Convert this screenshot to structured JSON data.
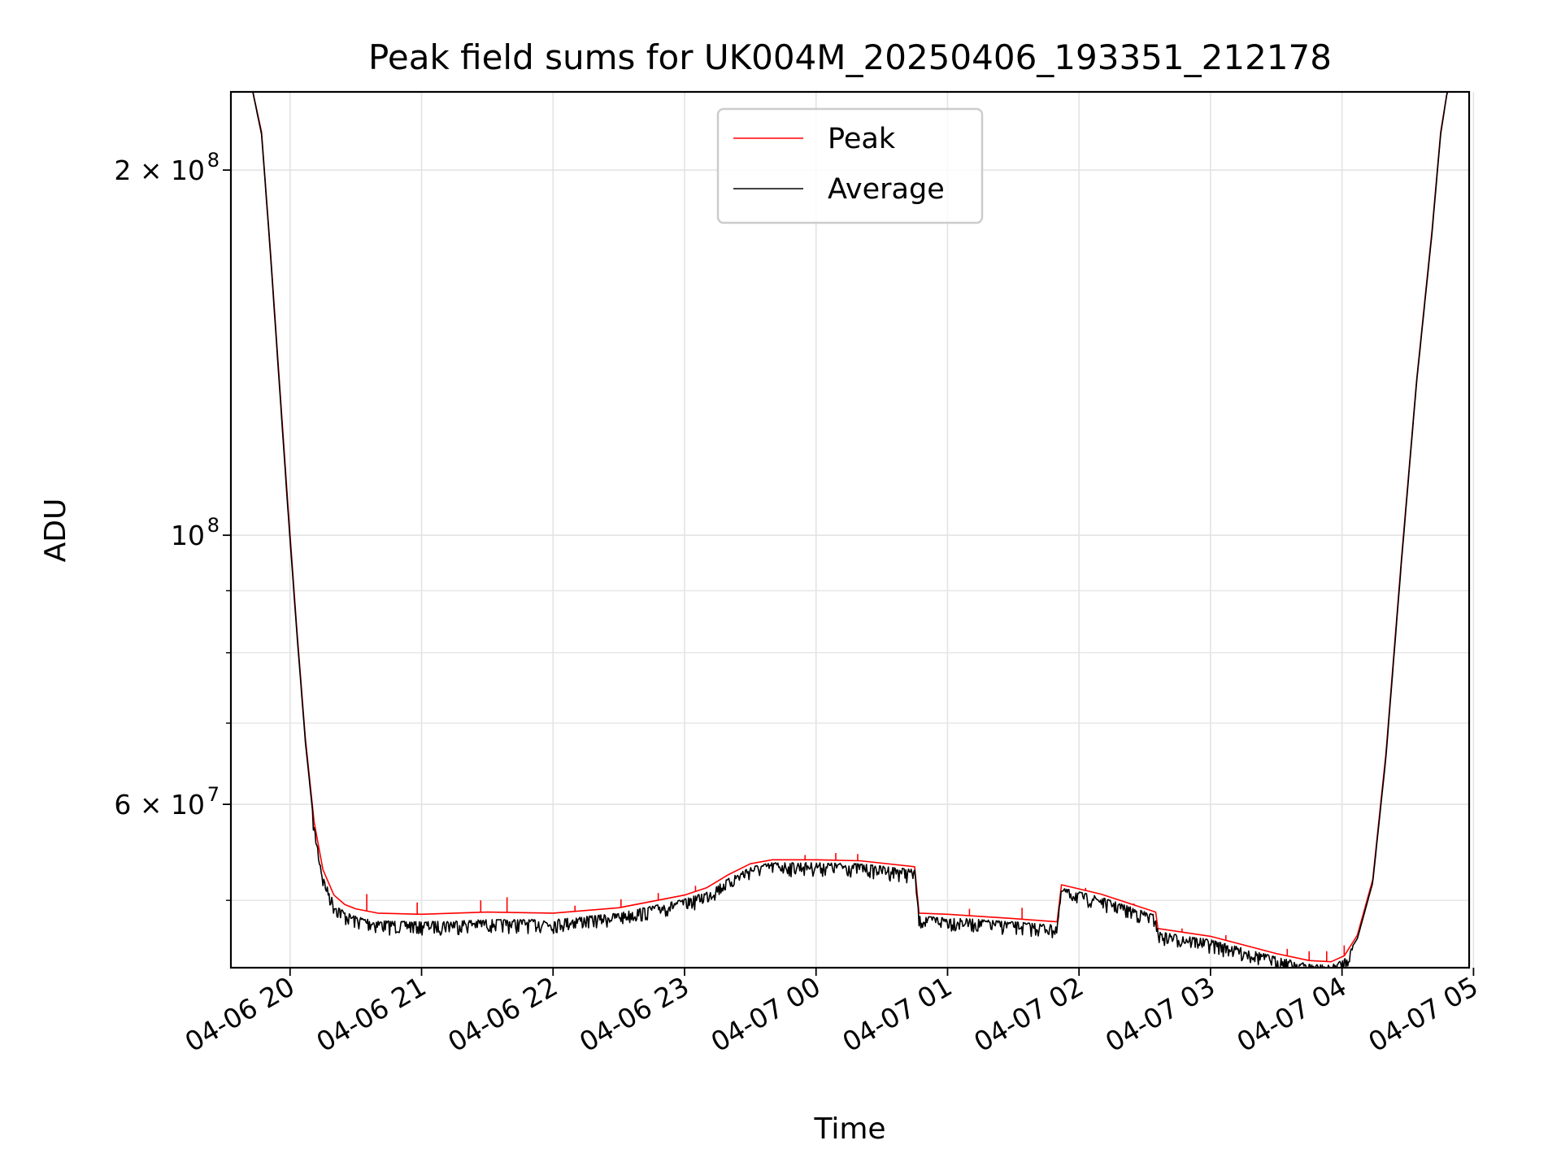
{
  "chart_data": {
    "type": "line",
    "title": "Peak field sums for UK004M_20250406_193351_212178",
    "xlabel": "Time",
    "ylabel": "ADU",
    "yscale": "log",
    "grid": true,
    "legend_position": "upper center",
    "xlim": [
      "2025-04-06 19:33",
      "2025-04-07 04:58"
    ],
    "ylim": [
      44000000,
      232000000
    ],
    "x_ticks": [
      "04-06 20",
      "04-06 21",
      "04-06 22",
      "04-06 23",
      "04-07 00",
      "04-07 01",
      "04-07 02",
      "04-07 03",
      "04-07 04",
      "04-07 05"
    ],
    "y_ticks": [
      {
        "value": 200000000,
        "base": "2 × 10",
        "exp": "8"
      },
      {
        "value": 100000000,
        "base": "10",
        "exp": "8"
      },
      {
        "value": 60000000,
        "base": "6 × 10",
        "exp": "7"
      }
    ],
    "y_minor_ticks": [
      50000000,
      70000000,
      80000000,
      90000000
    ],
    "series": [
      {
        "name": "Peak",
        "color": "#ff0000",
        "x": [
          "2025-04-06 19:33",
          "2025-04-06 19:43",
          "2025-04-06 19:47",
          "2025-04-06 19:51",
          "2025-04-06 19:55",
          "2025-04-06 19:59",
          "2025-04-06 20:03",
          "2025-04-06 20:07",
          "2025-04-06 20:11",
          "2025-04-06 20:15",
          "2025-04-06 20:20",
          "2025-04-06 20:25",
          "2025-04-06 20:30",
          "2025-04-06 20:40",
          "2025-04-06 21:00",
          "2025-04-06 21:30",
          "2025-04-06 22:00",
          "2025-04-06 22:30",
          "2025-04-06 23:00",
          "2025-04-06 23:10",
          "2025-04-06 23:20",
          "2025-04-06 23:30",
          "2025-04-06 23:40",
          "2025-04-07 00:00",
          "2025-04-07 00:20",
          "2025-04-07 00:45",
          "2025-04-07 00:47",
          "2025-04-07 01:00",
          "2025-04-07 01:30",
          "2025-04-07 01:50",
          "2025-04-07 01:52",
          "2025-04-07 02:10",
          "2025-04-07 02:35",
          "2025-04-07 02:36",
          "2025-04-07 03:00",
          "2025-04-07 03:30",
          "2025-04-07 03:45",
          "2025-04-07 03:55",
          "2025-04-07 04:01",
          "2025-04-07 04:07",
          "2025-04-07 04:14",
          "2025-04-07 04:20",
          "2025-04-07 04:27",
          "2025-04-07 04:34",
          "2025-04-07 04:41",
          "2025-04-07 04:45",
          "2025-04-07 04:48",
          "2025-04-07 04:58"
        ],
        "values": [
          232000000,
          232000000,
          215000000,
          172000000,
          135000000,
          106000000,
          84000000,
          68000000,
          58000000,
          53000000,
          50500000,
          49600000,
          49200000,
          48800000,
          48700000,
          48900000,
          48800000,
          49300000,
          50500000,
          51200000,
          52500000,
          53600000,
          54000000,
          54000000,
          53900000,
          53300000,
          48800000,
          48700000,
          48300000,
          48000000,
          51500000,
          50600000,
          48900000,
          47400000,
          46700000,
          45200000,
          44600000,
          44500000,
          45000000,
          46800000,
          52000000,
          66000000,
          95000000,
          134000000,
          178000000,
          215000000,
          232000000,
          232000000
        ],
        "spikes": [
          {
            "x": "2025-04-06 20:35",
            "value": 50600000
          },
          {
            "x": "2025-04-06 20:58",
            "value": 49800000
          },
          {
            "x": "2025-04-06 21:27",
            "value": 50000000
          },
          {
            "x": "2025-04-06 21:39",
            "value": 50300000
          },
          {
            "x": "2025-04-06 22:10",
            "value": 49500000
          },
          {
            "x": "2025-04-06 22:31",
            "value": 50100000
          },
          {
            "x": "2025-04-06 22:48",
            "value": 50700000
          },
          {
            "x": "2025-04-06 23:05",
            "value": 51400000
          },
          {
            "x": "2025-04-06 23:55",
            "value": 54500000
          },
          {
            "x": "2025-04-07 00:09",
            "value": 54700000
          },
          {
            "x": "2025-04-07 00:19",
            "value": 54600000
          },
          {
            "x": "2025-04-07 01:10",
            "value": 49200000
          },
          {
            "x": "2025-04-07 01:34",
            "value": 49300000
          },
          {
            "x": "2025-04-07 02:03",
            "value": 51200000
          },
          {
            "x": "2025-04-07 02:25",
            "value": 49700000
          },
          {
            "x": "2025-04-07 02:47",
            "value": 47400000
          },
          {
            "x": "2025-04-07 03:07",
            "value": 46800000
          },
          {
            "x": "2025-04-07 03:35",
            "value": 45600000
          },
          {
            "x": "2025-04-07 03:45",
            "value": 45400000
          },
          {
            "x": "2025-04-07 03:53",
            "value": 45400000
          },
          {
            "x": "2025-04-07 04:01",
            "value": 45900000
          }
        ]
      },
      {
        "name": "Average",
        "color": "#000000",
        "x": [
          "2025-04-06 19:33",
          "2025-04-06 19:43",
          "2025-04-06 19:47",
          "2025-04-06 19:51",
          "2025-04-06 19:55",
          "2025-04-06 19:59",
          "2025-04-06 20:03",
          "2025-04-06 20:07",
          "2025-04-06 20:11",
          "2025-04-06 20:15",
          "2025-04-06 20:20",
          "2025-04-06 20:25",
          "2025-04-06 20:30",
          "2025-04-06 20:40",
          "2025-04-06 21:00",
          "2025-04-06 21:30",
          "2025-04-06 22:00",
          "2025-04-06 22:30",
          "2025-04-06 23:00",
          "2025-04-06 23:10",
          "2025-04-06 23:20",
          "2025-04-06 23:30",
          "2025-04-06 23:40",
          "2025-04-07 00:00",
          "2025-04-07 00:20",
          "2025-04-07 00:45",
          "2025-04-07 00:47",
          "2025-04-07 01:00",
          "2025-04-07 01:30",
          "2025-04-07 01:50",
          "2025-04-07 01:52",
          "2025-04-07 02:10",
          "2025-04-07 02:35",
          "2025-04-07 02:36",
          "2025-04-07 03:00",
          "2025-04-07 03:30",
          "2025-04-07 03:45",
          "2025-04-07 03:55",
          "2025-04-07 04:01",
          "2025-04-07 04:07",
          "2025-04-07 04:14",
          "2025-04-07 04:20",
          "2025-04-07 04:27",
          "2025-04-07 04:34",
          "2025-04-07 04:41",
          "2025-04-07 04:45",
          "2025-04-07 04:48",
          "2025-04-07 04:58"
        ],
        "values": [
          232000000,
          232000000,
          214000000,
          171000000,
          134000000,
          105000000,
          83500000,
          67500000,
          57500000,
          52300000,
          49800000,
          48900000,
          48500000,
          48100000,
          48000000,
          48200000,
          48200000,
          48800000,
          50100000,
          50800000,
          52100000,
          53300000,
          53700000,
          53700000,
          53600000,
          53000000,
          48500000,
          48400000,
          48000000,
          47700000,
          51200000,
          50300000,
          48600000,
          47100000,
          46400000,
          44900000,
          44300000,
          44200000,
          44700000,
          46500000,
          51700000,
          65500000,
          94500000,
          133500000,
          177000000,
          214000000,
          232000000,
          232000000
        ],
        "noise": {
          "from": "2025-04-06 20:10",
          "to": "2025-04-07 04:05",
          "depth_fraction": 0.012
        }
      }
    ]
  }
}
